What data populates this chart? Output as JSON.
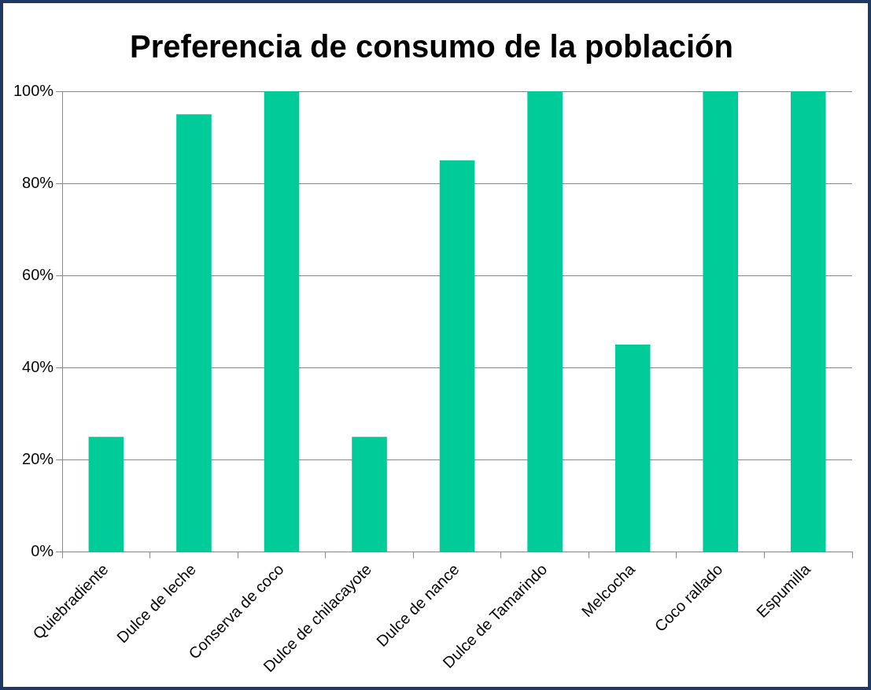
{
  "chart_data": {
    "type": "bar",
    "title": "Preferencia de consumo de la población",
    "categories": [
      "Quiebradiente",
      "Dulce de leche",
      "Conserva de coco",
      "Dulce de chilacayote",
      "Dulce de nance",
      "Dulce de Tamarindo",
      "Melcocha",
      "Coco rallado",
      "Espumilla"
    ],
    "values": [
      25,
      95,
      100,
      25,
      85,
      100,
      45,
      100,
      100
    ],
    "color": "#00cc99",
    "ylim": [
      0,
      100
    ],
    "yticks": [
      {
        "value": 0,
        "label": "0%"
      },
      {
        "value": 20,
        "label": "20%"
      },
      {
        "value": 40,
        "label": "40%"
      },
      {
        "value": 60,
        "label": "60%"
      },
      {
        "value": 80,
        "label": "80%"
      },
      {
        "value": 100,
        "label": "100%"
      }
    ],
    "grid": "y",
    "legend": false
  }
}
